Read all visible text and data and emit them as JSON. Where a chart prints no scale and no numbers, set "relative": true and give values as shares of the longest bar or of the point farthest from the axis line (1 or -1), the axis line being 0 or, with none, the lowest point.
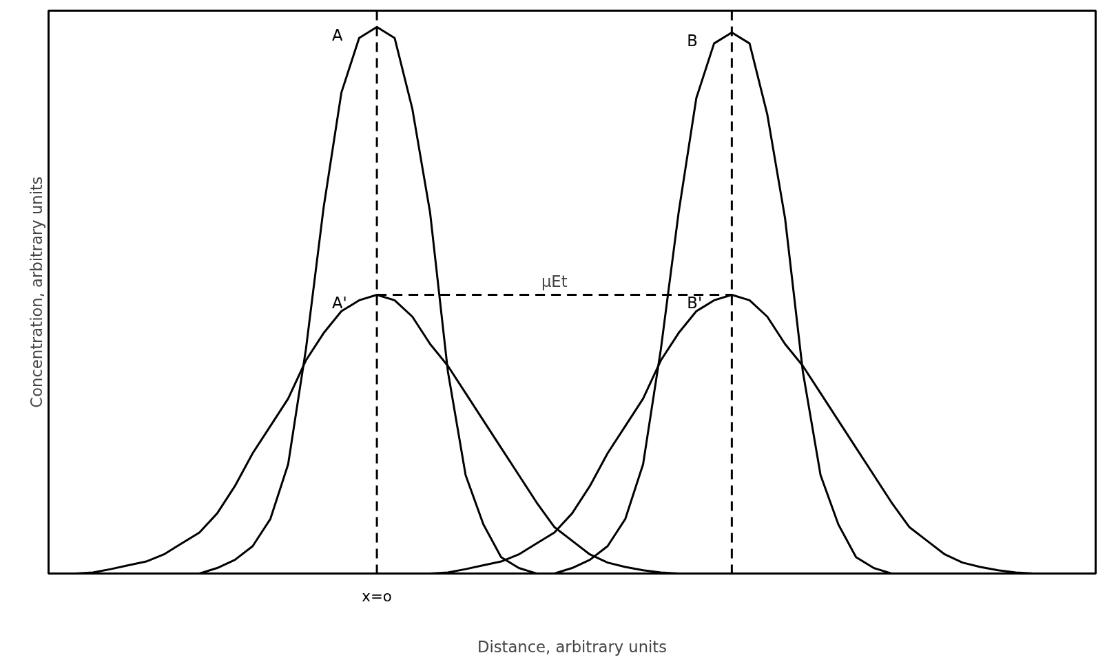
{
  "chart_data": {
    "type": "line",
    "relative": true,
    "xlabel": "Distance, arbitrary units",
    "ylabel": "Concentration, arbitrary units",
    "marker": "none",
    "line_style": "solid",
    "categories": [
      null,
      null,
      null,
      null,
      null,
      null,
      null,
      null,
      null,
      null,
      null,
      null,
      null,
      null,
      null,
      null,
      null,
      null,
      null,
      null,
      null,
      null,
      null,
      null,
      null,
      null,
      null,
      null,
      null,
      null,
      null,
      null,
      null,
      null,
      null,
      null,
      null,
      null,
      null,
      null,
      null,
      null,
      null,
      null,
      null,
      null,
      null,
      null,
      null,
      null,
      null,
      null,
      null,
      null,
      null,
      null,
      null,
      null,
      null
    ],
    "series": [
      {
        "name": "A",
        "color": "#000000",
        "values": [
          null,
          null,
          null,
          null,
          null,
          null,
          null,
          null,
          0,
          0.01,
          0.025,
          0.05,
          0.1,
          0.2,
          0.41,
          0.67,
          0.88,
          0.98,
          1,
          0.98,
          0.85,
          0.66,
          0.37,
          0.18,
          0.09,
          0.03,
          0.01,
          0,
          null,
          null,
          null,
          null,
          null,
          null,
          null,
          null,
          null,
          null,
          null,
          null,
          null,
          null,
          null,
          null,
          null,
          null,
          null,
          null,
          null,
          null,
          null,
          null,
          null,
          null,
          null,
          null,
          null,
          null,
          null
        ]
      },
      {
        "name": "B",
        "color": "#000000",
        "values": [
          null,
          null,
          null,
          null,
          null,
          null,
          null,
          null,
          null,
          null,
          null,
          null,
          null,
          null,
          null,
          null,
          null,
          null,
          null,
          null,
          null,
          null,
          null,
          null,
          null,
          null,
          null,
          null,
          0,
          0.01,
          0.025,
          0.05,
          0.1,
          0.2,
          0.41,
          0.66,
          0.87,
          0.97,
          0.99,
          0.97,
          0.84,
          0.65,
          0.37,
          0.18,
          0.09,
          0.03,
          0.01,
          0,
          null,
          null,
          null,
          null,
          null,
          null,
          null,
          null,
          null,
          null,
          null
        ]
      },
      {
        "name": "A'",
        "color": "#000000",
        "values": [
          null,
          0,
          0.002,
          0.008,
          0.015,
          0.022,
          0.035,
          0.055,
          0.075,
          0.11,
          0.16,
          0.22,
          0.27,
          0.32,
          0.39,
          0.44,
          0.48,
          0.5,
          0.51,
          0.5,
          0.47,
          0.42,
          0.38,
          0.33,
          0.28,
          0.23,
          0.18,
          0.13,
          0.085,
          0.06,
          0.035,
          0.02,
          0.012,
          0.006,
          0.002,
          0,
          null,
          null,
          null,
          null,
          null,
          null,
          null,
          null,
          null,
          null,
          null,
          null,
          null,
          null,
          null,
          null,
          null,
          null,
          null,
          null,
          null,
          null,
          null
        ]
      },
      {
        "name": "B'",
        "color": "#000000",
        "values": [
          null,
          null,
          null,
          null,
          null,
          null,
          null,
          null,
          null,
          null,
          null,
          null,
          null,
          null,
          null,
          null,
          null,
          null,
          null,
          null,
          null,
          0,
          0.002,
          0.008,
          0.015,
          0.022,
          0.035,
          0.055,
          0.075,
          0.11,
          0.16,
          0.22,
          0.27,
          0.32,
          0.39,
          0.44,
          0.48,
          0.5,
          0.51,
          0.5,
          0.47,
          0.42,
          0.38,
          0.33,
          0.28,
          0.23,
          0.18,
          0.13,
          0.085,
          0.06,
          0.035,
          0.02,
          0.012,
          0.006,
          0.002,
          0,
          null,
          null,
          null
        ]
      },
      {
        "color": "#000000",
        "line_style": "dashed",
        "values": [
          null,
          null,
          null,
          null,
          null,
          null,
          null,
          null,
          null,
          null,
          null,
          null,
          null,
          null,
          null,
          null,
          null,
          null,
          0.51,
          0.51,
          0.51,
          0.51,
          0.51,
          0.51,
          0.51,
          0.51,
          0.51,
          0.51,
          0.51,
          0.51,
          0.51,
          0.51,
          0.51,
          0.51,
          0.51,
          0.51,
          0.51,
          0.51,
          0.51,
          null,
          null,
          null,
          null,
          null,
          null,
          null,
          null,
          null,
          null,
          null,
          null,
          null,
          null,
          null,
          null,
          null,
          null,
          null,
          null
        ]
      }
    ],
    "annotations": [
      "μEt",
      "x=o"
    ]
  }
}
